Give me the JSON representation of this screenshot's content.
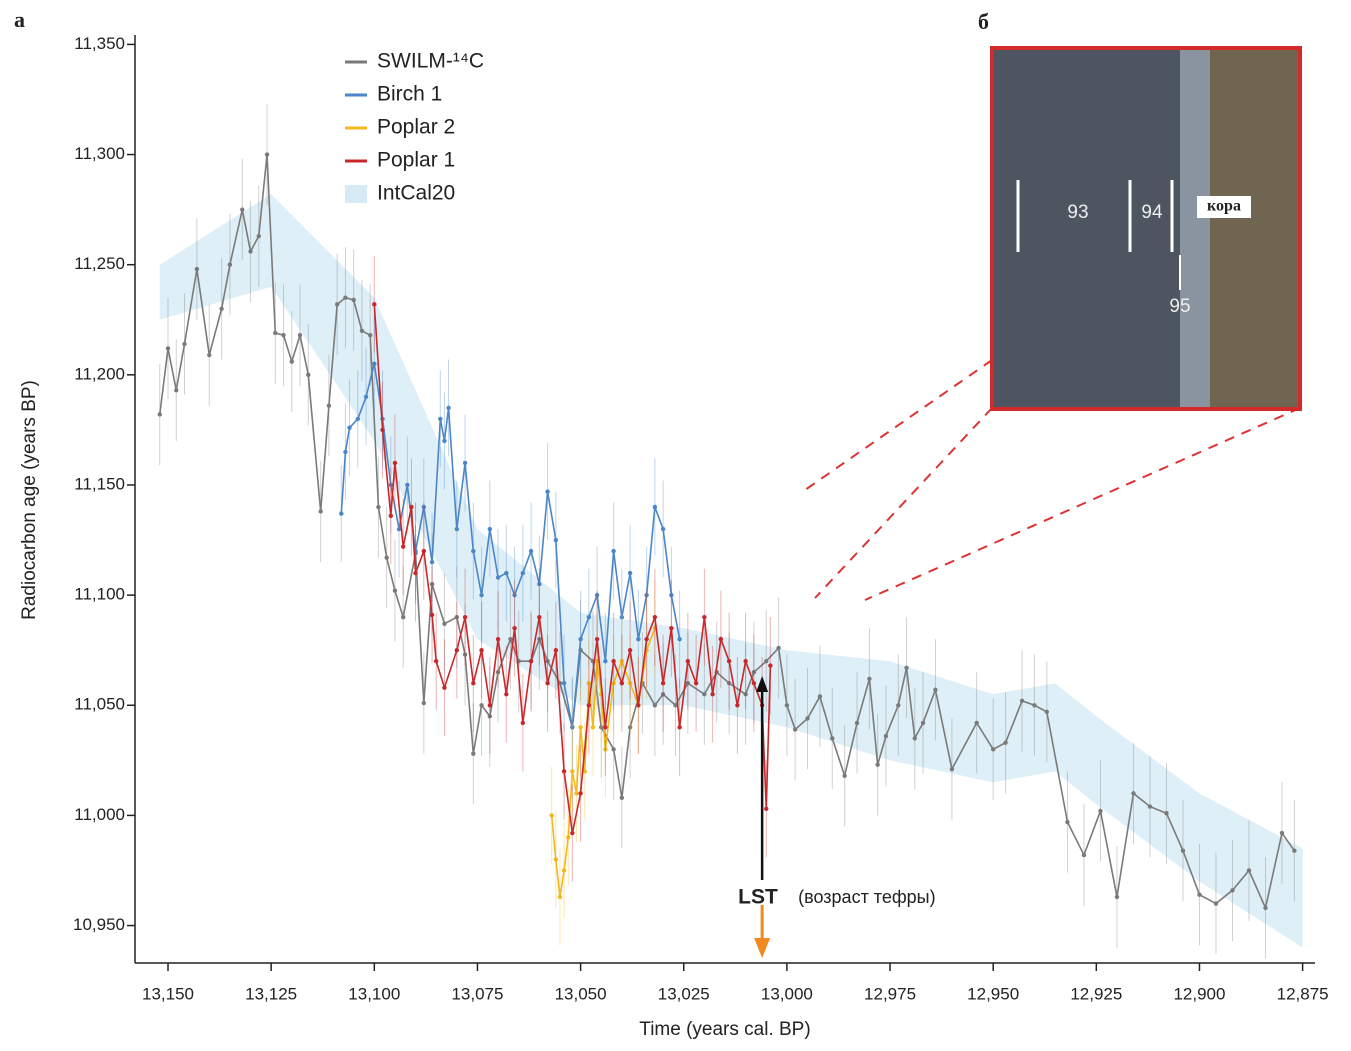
{
  "chart_data": {
    "type": "line",
    "panel_label": "a",
    "y_label": "Radiocarbon age (years BP)",
    "x_label": "Time (years cal. BP)",
    "xlim": [
      13158,
      12872
    ],
    "ylim": [
      10933,
      11352
    ],
    "xticks": [
      {
        "value": 13150,
        "label": "13,150"
      },
      {
        "value": 13125,
        "label": "13,125"
      },
      {
        "value": 13100,
        "label": "13,100"
      },
      {
        "value": 13075,
        "label": "13,075"
      },
      {
        "value": 13050,
        "label": "13,050"
      },
      {
        "value": 13025,
        "label": "13,025"
      },
      {
        "value": 13000,
        "label": "13,000"
      },
      {
        "value": 12975,
        "label": "12,975"
      },
      {
        "value": 12950,
        "label": "12,950"
      },
      {
        "value": 12925,
        "label": "12,925"
      },
      {
        "value": 12900,
        "label": "12,900"
      },
      {
        "value": 12875,
        "label": "12,875"
      }
    ],
    "yticks": [
      {
        "value": 10950,
        "label": "10,950"
      },
      {
        "value": 11000,
        "label": "11,000"
      },
      {
        "value": 11050,
        "label": "11,050"
      },
      {
        "value": 11100,
        "label": "11,100"
      },
      {
        "value": 11150,
        "label": "11,150"
      },
      {
        "value": 11200,
        "label": "11,200"
      },
      {
        "value": 11250,
        "label": "11,250"
      },
      {
        "value": 11300,
        "label": "11,300"
      },
      {
        "value": 11350,
        "label": "11,350"
      }
    ],
    "band": {
      "name": "IntCal20",
      "color": "#d6ebf5",
      "x": [
        13152,
        13125,
        13100,
        13075,
        13050,
        13025,
        13000,
        12975,
        12950,
        12935,
        12925,
        12900,
        12875
      ],
      "upper": [
        11250,
        11282,
        11235,
        11130,
        11092,
        11085,
        11075,
        11070,
        11055,
        11060,
        11045,
        11010,
        10985
      ],
      "lower": [
        11225,
        11240,
        11170,
        11080,
        11050,
        11050,
        11040,
        11025,
        11015,
        11020,
        11005,
        10970,
        10940
      ]
    },
    "series": [
      {
        "name": "SWILM-¹⁴C",
        "color": "#7a7a7a",
        "error": 23,
        "x": [
          13152,
          13150,
          13148,
          13146,
          13143,
          13140,
          13137,
          13135,
          13132,
          13130,
          13128,
          13126,
          13124,
          13122,
          13120,
          13118,
          13116,
          13113,
          13111,
          13109,
          13107,
          13105,
          13103,
          13101,
          13099,
          13097,
          13095,
          13093,
          13090,
          13088,
          13086,
          13083,
          13080,
          13078,
          13076,
          13074,
          13072,
          13070,
          13067,
          13065,
          13062,
          13060,
          13058,
          13055,
          13052,
          13050,
          13047,
          13045,
          13042,
          13040,
          13038,
          13035,
          13032,
          13030,
          13027,
          13024,
          13020,
          13017,
          13014,
          13010,
          13008,
          13005,
          13002,
          13000,
          12998,
          12995,
          12992,
          12989,
          12986,
          12983,
          12980,
          12978,
          12976,
          12973,
          12971,
          12969,
          12967,
          12964,
          12960,
          12954,
          12950,
          12947,
          12943,
          12940,
          12937,
          12932,
          12928,
          12924,
          12920,
          12916,
          12912,
          12908,
          12904,
          12900,
          12896,
          12892,
          12888,
          12884,
          12880,
          12877
        ],
        "values": [
          11182,
          11212,
          11193,
          11214,
          11248,
          11209,
          11230,
          11250,
          11275,
          11256,
          11263,
          11300,
          11219,
          11218,
          11206,
          11218,
          11200,
          11138,
          11186,
          11232,
          11235,
          11234,
          11220,
          11218,
          11140,
          11117,
          11102,
          11090,
          11119,
          11051,
          11105,
          11087,
          11090,
          11073,
          11028,
          11050,
          11045,
          11065,
          11080,
          11070,
          11070,
          11080,
          11070,
          11060,
          11040,
          11075,
          11070,
          11040,
          11030,
          11008,
          11040,
          11060,
          11050,
          11055,
          11050,
          11060,
          11055,
          11065,
          11060,
          11055,
          11065,
          11070,
          11076,
          11050,
          11039,
          11044,
          11054,
          11035,
          11018,
          11042,
          11062,
          11023,
          11036,
          11050,
          11067,
          11035,
          11042,
          11057,
          11021,
          11042,
          11030,
          11033,
          11052,
          11050,
          11047,
          10997,
          10982,
          11002,
          10963,
          11010,
          11004,
          11001,
          10984,
          10964,
          10960,
          10966,
          10975,
          10958,
          10992,
          10984
        ]
      },
      {
        "name": "Birch 1",
        "color": "#4a86c8",
        "error": 22,
        "x": [
          13108,
          13107,
          13106,
          13104,
          13102,
          13100,
          13098,
          13096,
          13094,
          13092,
          13090,
          13088,
          13086,
          13084,
          13083,
          13082,
          13080,
          13078,
          13076,
          13074,
          13072,
          13070,
          13068,
          13066,
          13064,
          13062,
          13060,
          13058,
          13056,
          13054,
          13052,
          13050,
          13048,
          13046,
          13044,
          13042,
          13040,
          13038,
          13036,
          13034,
          13032,
          13030,
          13028,
          13026
        ],
        "values": [
          11137,
          11165,
          11176,
          11180,
          11190,
          11205,
          11180,
          11150,
          11130,
          11150,
          11120,
          11140,
          11115,
          11180,
          11170,
          11185,
          11130,
          11160,
          11120,
          11100,
          11130,
          11108,
          11110,
          11100,
          11110,
          11120,
          11105,
          11147,
          11125,
          11060,
          11040,
          11080,
          11090,
          11100,
          11070,
          11120,
          11090,
          11110,
          11080,
          11100,
          11140,
          11130,
          11100,
          11080
        ]
      },
      {
        "name": "Poplar 2",
        "color": "#f2b81c",
        "error": 22,
        "x": [
          13057,
          13056,
          13055,
          13054,
          13053,
          13052,
          13051,
          13050,
          13049,
          13048,
          13047,
          13046,
          13045,
          13044,
          13042,
          13040,
          13038,
          13036,
          13034,
          13032
        ],
        "values": [
          11000,
          10980,
          10963,
          10975,
          10990,
          11020,
          11010,
          11040,
          11020,
          11060,
          11040,
          11070,
          11055,
          11030,
          11060,
          11070,
          11060,
          11050,
          11075,
          11085
        ]
      },
      {
        "name": "Poplar 1",
        "color": "#c8282a",
        "error": 22,
        "x": [
          13100,
          13098,
          13096,
          13095,
          13093,
          13091,
          13090,
          13088,
          13086,
          13085,
          13083,
          13080,
          13078,
          13076,
          13074,
          13072,
          13070,
          13068,
          13066,
          13064,
          13062,
          13060,
          13058,
          13056,
          13054,
          13052,
          13050,
          13048,
          13046,
          13044,
          13042,
          13040,
          13038,
          13036,
          13034,
          13032,
          13030,
          13028,
          13026,
          13024,
          13022,
          13020,
          13018,
          13016,
          13014,
          13012,
          13010,
          13008,
          13006,
          13005,
          13004
        ],
        "values": [
          11232,
          11175,
          11136,
          11160,
          11122,
          11140,
          11110,
          11120,
          11091,
          11070,
          11058,
          11075,
          11090,
          11060,
          11075,
          11050,
          11080,
          11055,
          11085,
          11042,
          11070,
          11090,
          11060,
          11075,
          11020,
          10992,
          11010,
          11050,
          11080,
          11040,
          11070,
          11060,
          11075,
          11050,
          11080,
          11090,
          11060,
          11085,
          11040,
          11070,
          11060,
          11090,
          11055,
          11080,
          11070,
          11050,
          11070,
          11060,
          11050,
          11003,
          11068
        ]
      }
    ],
    "annotation": {
      "label": "LST",
      "note": "(возраст тефры)",
      "x": 13006
    },
    "inset": {
      "label": "б",
      "rings": [
        "93",
        "94",
        "95"
      ],
      "bark": "кора"
    }
  }
}
